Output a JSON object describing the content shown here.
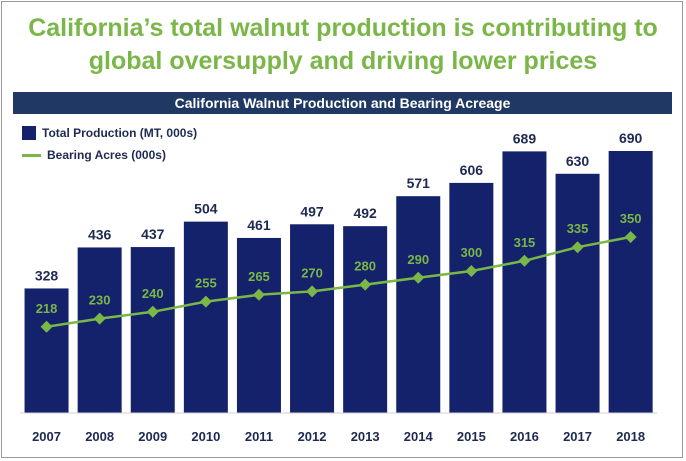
{
  "headline": {
    "line1": "California’s total walnut production is contributing to",
    "line2": "global oversupply and driving lower prices"
  },
  "chart_data": {
    "type": "bar",
    "title": "California Walnut Production and Bearing Acreage",
    "categories": [
      "2007",
      "2008",
      "2009",
      "2010",
      "2011",
      "2012",
      "2013",
      "2014",
      "2015",
      "2016",
      "2017",
      "2018"
    ],
    "series": [
      {
        "name": "Total Production (MT, 000s)",
        "type": "bar",
        "color": "#14216b",
        "values": [
          328,
          436,
          437,
          504,
          461,
          497,
          492,
          571,
          606,
          689,
          630,
          690
        ]
      },
      {
        "name": "Bearing Acres (000s)",
        "type": "line",
        "marker": "diamond",
        "color": "#7ab648",
        "values": [
          218,
          230,
          240,
          255,
          265,
          270,
          280,
          290,
          300,
          315,
          335,
          350
        ]
      }
    ],
    "legend_position": "top-left",
    "grid": false
  }
}
